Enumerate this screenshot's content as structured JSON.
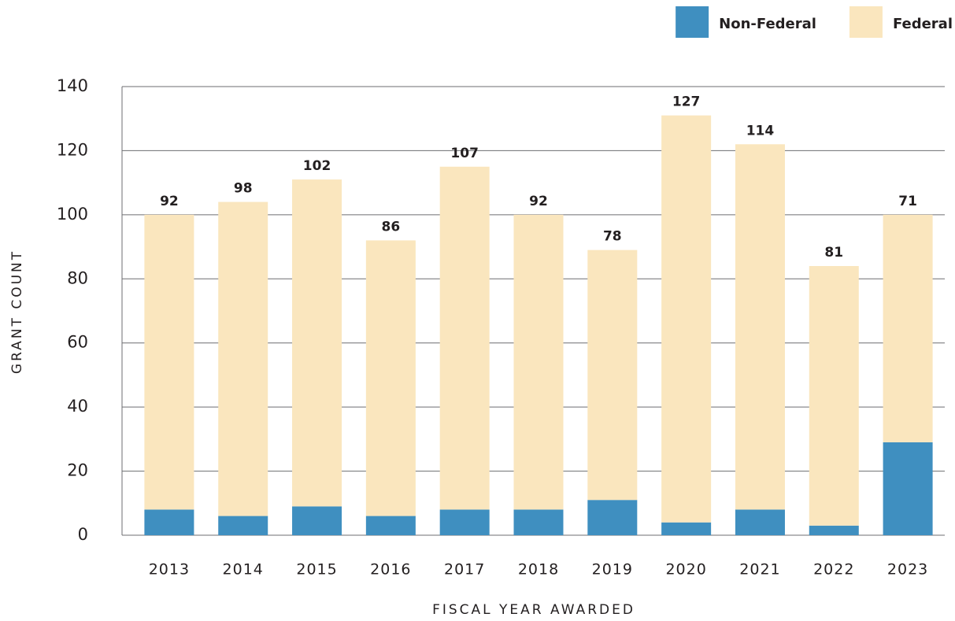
{
  "chart_data": {
    "type": "stacked_bar",
    "xlabel": "FISCAL YEAR AWARDED",
    "ylabel": "GRANT COUNT",
    "categories": [
      "2013",
      "2014",
      "2015",
      "2016",
      "2017",
      "2018",
      "2019",
      "2020",
      "2021",
      "2022",
      "2023"
    ],
    "series": [
      {
        "name": "Non-Federal",
        "color": "#3f8fc0",
        "values": [
          8,
          6,
          9,
          6,
          8,
          8,
          11,
          4,
          8,
          3,
          29
        ]
      },
      {
        "name": "Federal",
        "color": "#fae6be",
        "values": [
          92,
          98,
          102,
          86,
          107,
          92,
          78,
          127,
          114,
          81,
          71
        ]
      }
    ],
    "ylim": [
      0,
      140
    ],
    "yticks": [
      0,
      20,
      40,
      60,
      80,
      100,
      120,
      140
    ],
    "grid": true,
    "legend": "top right"
  }
}
